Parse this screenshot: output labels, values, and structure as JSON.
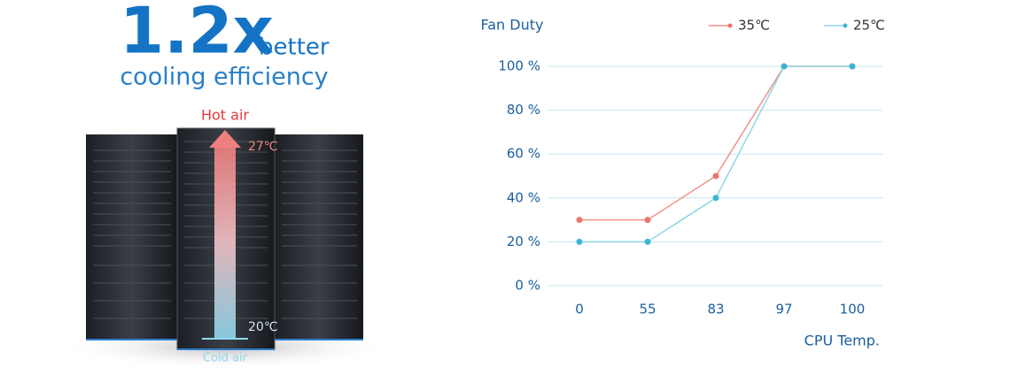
{
  "headline": {
    "number": "1.2x",
    "word": "better",
    "line2": "cooling efficiency"
  },
  "illustration": {
    "top_label": "Hot air",
    "top_temp": "27℃",
    "bottom_temp": "20℃",
    "bottom_label": "Cold air"
  },
  "chart_data": {
    "type": "line",
    "y_label": "Fan Duty",
    "x_label": "CPU Temp.",
    "categories": [
      "0",
      "55",
      "83",
      "97",
      "100"
    ],
    "series": [
      {
        "name": "35℃",
        "color": "#f0938a",
        "point_color": "#e8776b",
        "values": [
          30,
          30,
          50,
          100,
          100
        ]
      },
      {
        "name": "25℃",
        "color": "#8fd6e6",
        "point_color": "#3bb4d4",
        "values": [
          20,
          20,
          40,
          100,
          100
        ]
      }
    ],
    "ylim": [
      0,
      100
    ],
    "yticks": [
      {
        "value": 0,
        "label": "0 %"
      },
      {
        "value": 20,
        "label": "20 %"
      },
      {
        "value": 40,
        "label": "40 %"
      },
      {
        "value": 60,
        "label": "60 %"
      },
      {
        "value": 80,
        "label": "80 %"
      },
      {
        "value": 100,
        "label": "100 %"
      }
    ],
    "grid": true,
    "legend": "top"
  }
}
